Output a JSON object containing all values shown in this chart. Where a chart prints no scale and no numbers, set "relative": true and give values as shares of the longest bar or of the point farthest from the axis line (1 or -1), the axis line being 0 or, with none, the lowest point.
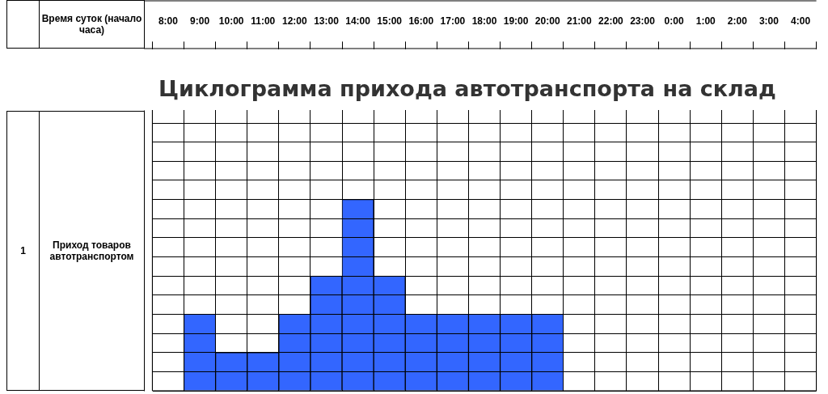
{
  "chart_data": {
    "type": "bar",
    "title": "Циклограмма прихода автотранспорта на склад",
    "categories": [
      "8:00",
      "9:00",
      "10:00",
      "11:00",
      "12:00",
      "13:00",
      "14:00",
      "15:00",
      "16:00",
      "17:00",
      "18:00",
      "19:00",
      "20:00",
      "21:00",
      "22:00",
      "23:00",
      "0:00",
      "1:00",
      "2:00",
      "3:00",
      "4:00"
    ],
    "values": [
      0,
      0.4,
      0.2,
      0.2,
      0.4,
      0.6,
      1,
      0.6,
      0.4,
      0.4,
      0.4,
      0.4,
      0.4,
      0,
      0,
      0,
      0,
      0,
      0,
      0,
      0
    ],
    "color": "#3366ff",
    "relative": true,
    "grid": true,
    "annotations": [
      "Время суток (начало часа)",
      "1",
      "Приход товаров автотранспортом"
    ]
  }
}
